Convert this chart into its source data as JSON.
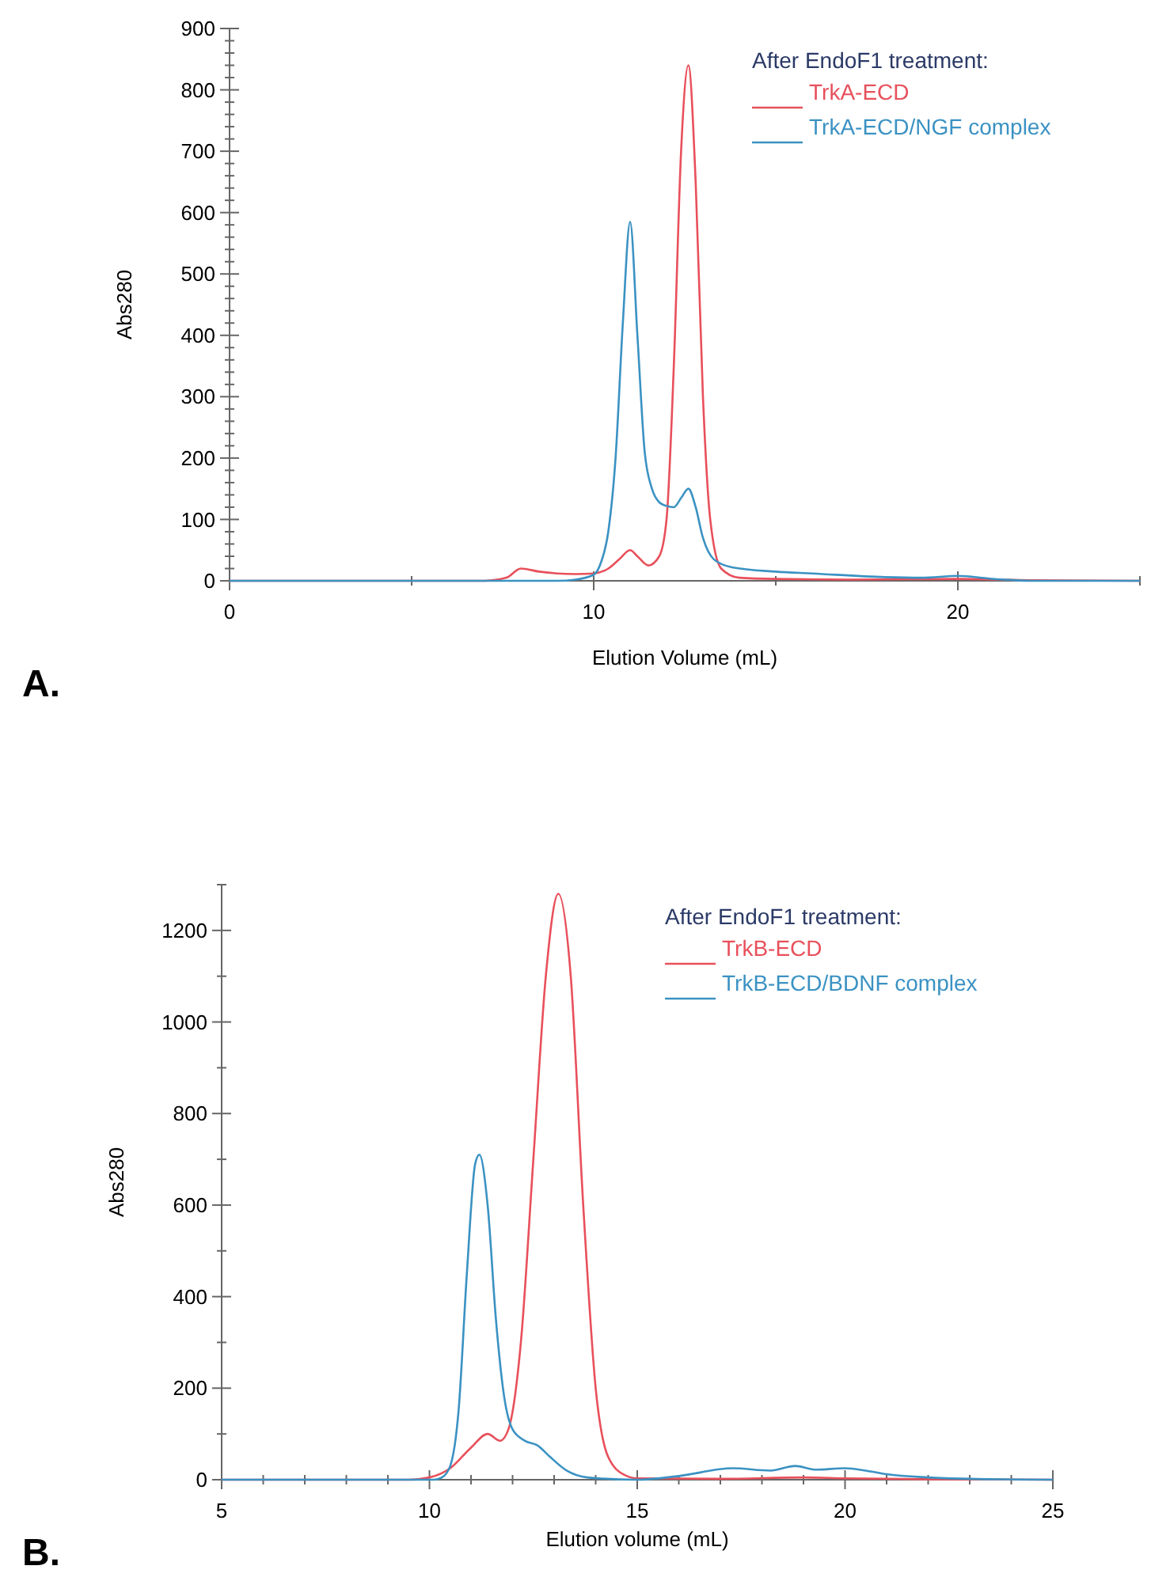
{
  "chart_data": [
    {
      "type": "line",
      "xlabel": "Elution Volume (mL)",
      "ylabel": "Abs280",
      "legend_title": "After EndoF1 treatment:",
      "legend": "top right",
      "annotations": [
        "A."
      ],
      "xlim": [
        0,
        25
      ],
      "ylim": [
        0,
        900
      ],
      "xticks": [
        0,
        {
          "value": 5,
          "label": null
        },
        10,
        {
          "value": 15,
          "label": null
        },
        20,
        {
          "value": 25,
          "label": null
        }
      ],
      "yticks": [
        0,
        {
          "value": 20,
          "label": null
        },
        {
          "value": 40,
          "label": null
        },
        {
          "value": 60,
          "label": null
        },
        {
          "value": 80,
          "label": null
        },
        100,
        {
          "value": 120,
          "label": null
        },
        {
          "value": 140,
          "label": null
        },
        {
          "value": 160,
          "label": null
        },
        {
          "value": 180,
          "label": null
        },
        200,
        {
          "value": 220,
          "label": null
        },
        {
          "value": 240,
          "label": null
        },
        {
          "value": 260,
          "label": null
        },
        {
          "value": 280,
          "label": null
        },
        300,
        {
          "value": 320,
          "label": null
        },
        {
          "value": 340,
          "label": null
        },
        {
          "value": 360,
          "label": null
        },
        {
          "value": 380,
          "label": null
        },
        400,
        {
          "value": 420,
          "label": null
        },
        {
          "value": 440,
          "label": null
        },
        {
          "value": 460,
          "label": null
        },
        {
          "value": 480,
          "label": null
        },
        500,
        {
          "value": 520,
          "label": null
        },
        {
          "value": 540,
          "label": null
        },
        {
          "value": 560,
          "label": null
        },
        {
          "value": 580,
          "label": null
        },
        600,
        {
          "value": 620,
          "label": null
        },
        {
          "value": 640,
          "label": null
        },
        {
          "value": 660,
          "label": null
        },
        {
          "value": 680,
          "label": null
        },
        700,
        {
          "value": 720,
          "label": null
        },
        {
          "value": 740,
          "label": null
        },
        {
          "value": 760,
          "label": null
        },
        {
          "value": 780,
          "label": null
        },
        800,
        {
          "value": 820,
          "label": null
        },
        {
          "value": 840,
          "label": null
        },
        {
          "value": 860,
          "label": null
        },
        {
          "value": 880,
          "label": null
        },
        900
      ],
      "series": [
        {
          "name": "TrkA-ECD",
          "color": "#e8505b",
          "x": [
            0,
            7,
            7.6,
            8,
            8.5,
            9,
            9.5,
            10,
            10.4,
            10.7,
            11,
            11.2,
            11.5,
            11.8,
            12,
            12.2,
            12.4,
            12.6,
            12.8,
            13,
            13.2,
            13.5,
            14,
            15,
            17,
            20,
            22,
            25
          ],
          "values": [
            0,
            0,
            5,
            20,
            15,
            12,
            11,
            12,
            20,
            35,
            50,
            40,
            25,
            40,
            100,
            350,
            700,
            840,
            650,
            300,
            100,
            20,
            5,
            3,
            2,
            3,
            1,
            0
          ]
        },
        {
          "name": "TrkA-ECD/NGF complex",
          "color": "#3b92c3",
          "x": [
            0,
            9,
            9.5,
            10,
            10.2,
            10.4,
            10.6,
            10.8,
            11,
            11.2,
            11.4,
            11.6,
            11.8,
            12,
            12.2,
            12.4,
            12.6,
            12.8,
            13,
            13.3,
            13.8,
            15,
            16,
            18,
            19,
            20,
            21,
            22,
            25
          ],
          "values": [
            0,
            0,
            2,
            10,
            30,
            80,
            200,
            420,
            585,
            400,
            210,
            150,
            128,
            122,
            120,
            135,
            150,
            120,
            70,
            35,
            22,
            15,
            12,
            6,
            5,
            8,
            3,
            0,
            0
          ]
        }
      ]
    },
    {
      "type": "line",
      "xlabel": "Elution volume (mL)",
      "ylabel": "Abs280",
      "legend_title": "After EndoF1 treatment:",
      "legend": "top right",
      "annotations": [
        "B."
      ],
      "xlim": [
        5,
        25
      ],
      "ylim": [
        0,
        1300
      ],
      "xticks": [
        5,
        {
          "value": 6,
          "label": null
        },
        {
          "value": 7,
          "label": null
        },
        {
          "value": 8,
          "label": null
        },
        {
          "value": 9,
          "label": null
        },
        10,
        {
          "value": 11,
          "label": null
        },
        {
          "value": 12,
          "label": null
        },
        {
          "value": 13,
          "label": null
        },
        {
          "value": 14,
          "label": null
        },
        15,
        {
          "value": 16,
          "label": null
        },
        {
          "value": 17,
          "label": null
        },
        {
          "value": 18,
          "label": null
        },
        {
          "value": 19,
          "label": null
        },
        20,
        {
          "value": 21,
          "label": null
        },
        {
          "value": 22,
          "label": null
        },
        {
          "value": 23,
          "label": null
        },
        {
          "value": 24,
          "label": null
        },
        25
      ],
      "yticks": [
        0,
        {
          "value": 100,
          "label": null
        },
        200,
        {
          "value": 300,
          "label": null
        },
        400,
        {
          "value": 500,
          "label": null
        },
        600,
        {
          "value": 700,
          "label": null
        },
        800,
        {
          "value": 900,
          "label": null
        },
        1000,
        {
          "value": 1100,
          "label": null
        },
        1200,
        {
          "value": 1300,
          "label": null
        }
      ],
      "series": [
        {
          "name": "TrkB-ECD",
          "color": "#e8505b",
          "x": [
            5,
            9.5,
            10,
            10.5,
            11,
            11.4,
            11.7,
            11.9,
            12.2,
            12.5,
            12.8,
            13.1,
            13.4,
            13.7,
            14,
            14.3,
            14.7,
            15,
            17,
            19,
            20,
            22,
            25
          ],
          "values": [
            0,
            0,
            5,
            25,
            70,
            100,
            85,
            110,
            300,
            700,
            1100,
            1280,
            1100,
            600,
            200,
            50,
            10,
            3,
            2,
            5,
            3,
            1,
            0
          ]
        },
        {
          "name": "TrkB-ECD/BDNF complex",
          "color": "#3b92c3",
          "x": [
            5,
            10.1,
            10.3,
            10.5,
            10.7,
            10.9,
            11.1,
            11.2,
            11.4,
            11.6,
            11.8,
            12,
            12.3,
            12.6,
            12.9,
            13.3,
            13.8,
            15,
            16,
            17.3,
            18.2,
            18.8,
            19.3,
            20,
            20.5,
            21,
            22,
            23,
            25
          ],
          "values": [
            0,
            0,
            5,
            30,
            150,
            450,
            690,
            710,
            600,
            350,
            180,
            110,
            85,
            75,
            50,
            20,
            5,
            0,
            8,
            25,
            20,
            30,
            22,
            25,
            20,
            12,
            5,
            2,
            0
          ]
        }
      ]
    }
  ]
}
